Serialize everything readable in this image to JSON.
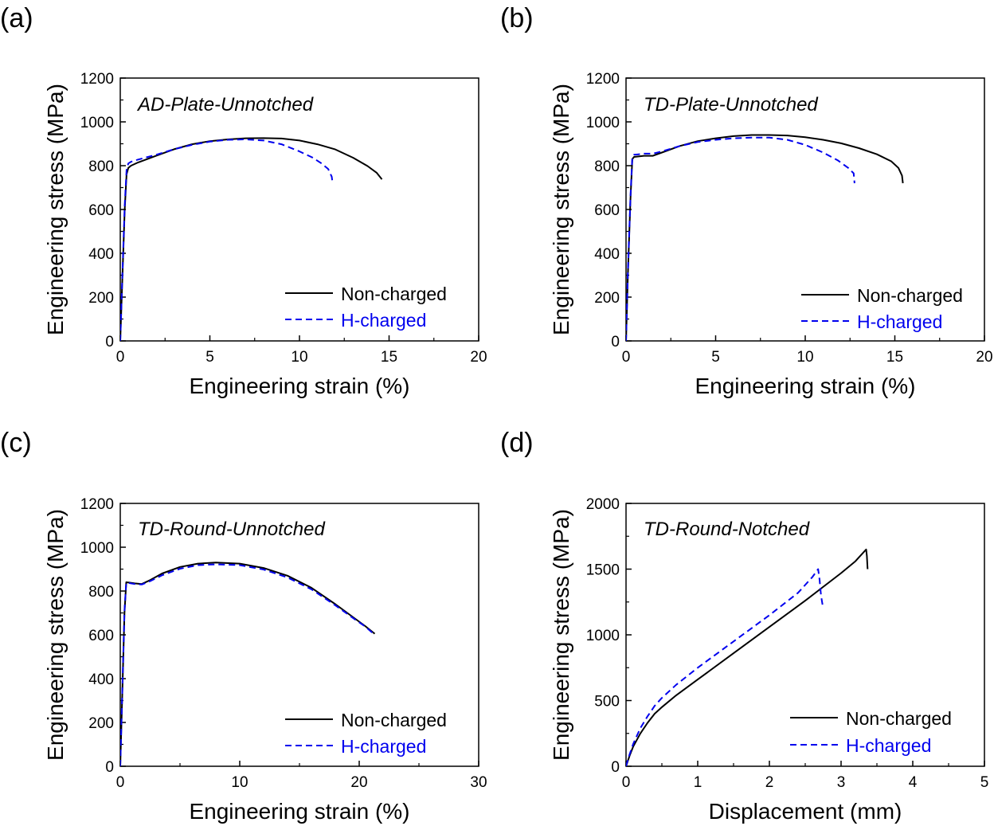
{
  "chart_data": [
    {
      "panel": "(a)",
      "type": "line",
      "title": "AD-Plate-Unnotched",
      "xlabel": "Engineering strain (%)",
      "ylabel": "Engineering stress (MPa)",
      "xlim": [
        0,
        20
      ],
      "ylim": [
        0,
        1200
      ],
      "xticks": [
        0,
        5,
        10,
        15,
        20
      ],
      "yticks": [
        0,
        200,
        400,
        600,
        800,
        1000,
        1200
      ],
      "grid": false,
      "legend_position": "bottom-right",
      "series": [
        {
          "name": "Non-charged",
          "color": "#000000",
          "dash": "solid",
          "x": [
            0,
            0.1,
            0.25,
            0.35,
            0.45,
            0.6,
            1,
            2,
            3,
            4,
            5,
            6,
            7,
            8,
            9,
            10,
            11,
            12,
            13,
            13.8,
            14.3,
            14.6
          ],
          "y": [
            0,
            250,
            600,
            760,
            790,
            800,
            815,
            845,
            875,
            898,
            912,
            920,
            925,
            926,
            924,
            915,
            898,
            874,
            836,
            798,
            768,
            738
          ]
        },
        {
          "name": "H-charged",
          "color": "#0000ee",
          "dash": "dashed",
          "x": [
            0,
            0.1,
            0.25,
            0.35,
            0.45,
            0.6,
            1,
            2,
            3,
            4,
            5,
            6,
            7,
            8,
            9,
            10,
            10.7,
            11.2,
            11.6,
            11.8,
            11.85
          ],
          "y": [
            0,
            260,
            620,
            780,
            810,
            818,
            828,
            850,
            875,
            895,
            910,
            918,
            920,
            915,
            898,
            865,
            838,
            812,
            785,
            750,
            720
          ]
        }
      ]
    },
    {
      "panel": "(b)",
      "type": "line",
      "title": "TD-Plate-Unnotched",
      "xlabel": "Engineering strain (%)",
      "ylabel": "Engineering stress (MPa)",
      "xlim": [
        0,
        20
      ],
      "ylim": [
        0,
        1200
      ],
      "xticks": [
        0,
        5,
        10,
        15,
        20
      ],
      "yticks": [
        0,
        200,
        400,
        600,
        800,
        1000,
        1200
      ],
      "grid": false,
      "legend_position": "bottom-right",
      "series": [
        {
          "name": "Non-charged",
          "color": "#000000",
          "dash": "solid",
          "x": [
            0,
            0.1,
            0.25,
            0.35,
            0.45,
            0.7,
            1.0,
            1.5,
            2,
            3,
            4,
            5,
            6,
            7,
            8,
            9,
            10,
            11,
            12,
            13,
            14,
            14.8,
            15.2,
            15.4,
            15.45
          ],
          "y": [
            0,
            300,
            650,
            830,
            840,
            842,
            845,
            845,
            860,
            890,
            912,
            925,
            935,
            940,
            940,
            938,
            930,
            918,
            902,
            880,
            852,
            820,
            790,
            755,
            720
          ]
        },
        {
          "name": "H-charged",
          "color": "#0000ee",
          "dash": "dashed",
          "x": [
            0,
            0.1,
            0.25,
            0.35,
            0.45,
            0.7,
            1.0,
            1.5,
            2,
            3,
            4,
            5,
            6,
            7,
            8,
            9,
            10,
            11,
            11.8,
            12.4,
            12.7,
            12.75
          ],
          "y": [
            0,
            310,
            660,
            840,
            850,
            852,
            855,
            855,
            865,
            890,
            908,
            918,
            925,
            928,
            928,
            918,
            895,
            860,
            825,
            790,
            765,
            720
          ]
        }
      ]
    },
    {
      "panel": "(c)",
      "type": "line",
      "title": "TD-Round-Unnotched",
      "xlabel": "Engineering strain (%)",
      "ylabel": "Engineering stress (MPa)",
      "xlim": [
        0,
        30
      ],
      "ylim": [
        0,
        1200
      ],
      "xticks": [
        0,
        10,
        20,
        30
      ],
      "yticks": [
        0,
        200,
        400,
        600,
        800,
        1000,
        1200
      ],
      "grid": false,
      "legend_position": "bottom-right",
      "series": [
        {
          "name": "Non-charged",
          "color": "#000000",
          "dash": "solid",
          "x": [
            0,
            0.15,
            0.35,
            0.5,
            0.8,
            1.2,
            1.8,
            2.5,
            3.5,
            5,
            6.5,
            8,
            10,
            12,
            14,
            16,
            18,
            19.5,
            20.5,
            21.3
          ],
          "y": [
            0,
            300,
            700,
            840,
            838,
            835,
            832,
            850,
            880,
            910,
            925,
            930,
            925,
            905,
            870,
            815,
            740,
            680,
            640,
            605
          ]
        },
        {
          "name": "H-charged",
          "color": "#0000ee",
          "dash": "dashed",
          "x": [
            0,
            0.15,
            0.35,
            0.5,
            0.8,
            1.2,
            1.8,
            2.5,
            3.5,
            5,
            6.5,
            8,
            10,
            12,
            14,
            16,
            18,
            19.5,
            20.5,
            21.2
          ],
          "y": [
            0,
            310,
            710,
            838,
            836,
            832,
            830,
            845,
            872,
            902,
            918,
            922,
            918,
            898,
            862,
            808,
            735,
            676,
            638,
            605
          ]
        }
      ]
    },
    {
      "panel": "(d)",
      "type": "line",
      "title": "TD-Round-Notched",
      "xlabel": "Displacement (mm)",
      "ylabel": "Engineering stress (MPa)",
      "xlim": [
        0,
        5
      ],
      "ylim": [
        0,
        2000
      ],
      "xticks": [
        0,
        1,
        2,
        3,
        4,
        5
      ],
      "yticks": [
        0,
        500,
        1000,
        1500,
        2000
      ],
      "grid": false,
      "legend_position": "bottom-right",
      "series": [
        {
          "name": "Non-charged",
          "color": "#000000",
          "dash": "solid",
          "x": [
            0,
            0.05,
            0.1,
            0.2,
            0.3,
            0.4,
            0.5,
            0.7,
            1.0,
            1.5,
            2.0,
            2.5,
            3.0,
            3.2,
            3.3,
            3.35,
            3.36,
            3.37
          ],
          "y": [
            0,
            80,
            150,
            250,
            330,
            400,
            450,
            540,
            660,
            860,
            1060,
            1260,
            1470,
            1560,
            1620,
            1650,
            1600,
            1500
          ]
        },
        {
          "name": "H-charged",
          "color": "#0000ee",
          "dash": "dashed",
          "x": [
            0,
            0.05,
            0.1,
            0.2,
            0.3,
            0.4,
            0.5,
            0.7,
            1.0,
            1.5,
            2.0,
            2.4,
            2.6,
            2.68,
            2.7,
            2.72,
            2.75
          ],
          "y": [
            0,
            90,
            170,
            290,
            380,
            460,
            520,
            620,
            750,
            950,
            1150,
            1320,
            1440,
            1500,
            1420,
            1300,
            1200
          ]
        }
      ]
    }
  ]
}
